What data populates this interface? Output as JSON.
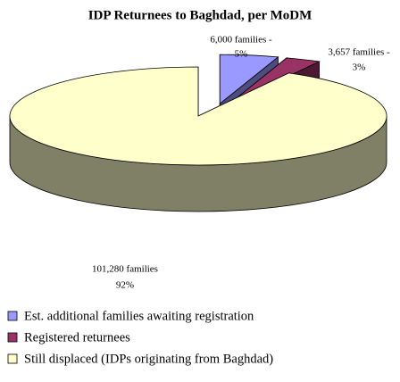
{
  "chart_data": {
    "type": "pie3d",
    "title": "IDP Returnees to Baghdad, per MoDM",
    "categories": [
      "Est. additional families awaiting registration",
      "Registered returnees",
      "Still displaced (IDPs originating from Baghdad)"
    ],
    "values": [
      5,
      3,
      92
    ],
    "value_labels": [
      "5%",
      "3%",
      "92%"
    ],
    "family_labels": [
      "6,000 families -",
      "3,657 families -",
      "101,280 families"
    ],
    "colors": [
      "#9999ff",
      "#993366",
      "#ffffcc"
    ],
    "legend": "bottom"
  }
}
